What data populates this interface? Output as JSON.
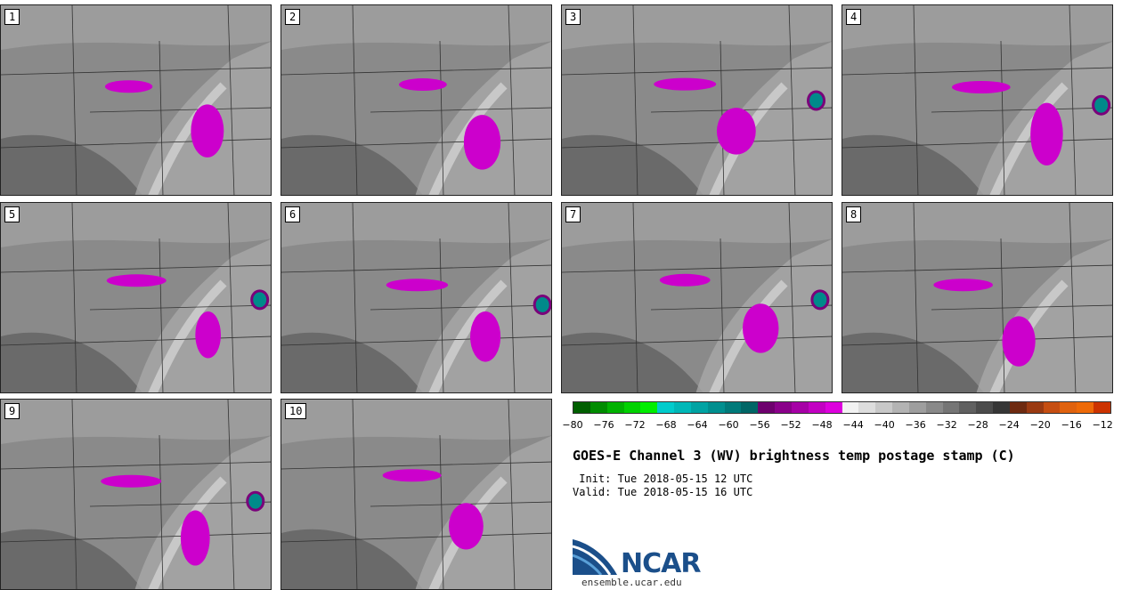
{
  "panels": [
    {
      "label": "1"
    },
    {
      "label": "2"
    },
    {
      "label": "3"
    },
    {
      "label": "4"
    },
    {
      "label": "5"
    },
    {
      "label": "6"
    },
    {
      "label": "7"
    },
    {
      "label": "8"
    },
    {
      "label": "9"
    },
    {
      "label": "10"
    }
  ],
  "colorbar": {
    "colors": [
      "#005f00",
      "#008c00",
      "#00b200",
      "#00d200",
      "#00ee00",
      "#00cccc",
      "#00b8b8",
      "#00a3a3",
      "#008f8f",
      "#007a7a",
      "#006666",
      "#6e006e",
      "#8a008a",
      "#a600a6",
      "#c200c2",
      "#dd00dd",
      "#f2f2f2",
      "#dddddd",
      "#c8c8c8",
      "#b3b3b3",
      "#9e9e9e",
      "#898989",
      "#757575",
      "#606060",
      "#4b4b4b",
      "#363636",
      "#6e2a10",
      "#9a3a12",
      "#c64e12",
      "#e0620e",
      "#ee6a08",
      "#cc3300"
    ],
    "ticks": [
      "−80",
      "−76",
      "−72",
      "−68",
      "−64",
      "−60",
      "−56",
      "−52",
      "−48",
      "−44",
      "−40",
      "−36",
      "−32",
      "−28",
      "−24",
      "−20",
      "−16",
      "−12"
    ]
  },
  "title": "GOES-E Channel 3 (WV) brightness temp postage stamp (C)",
  "init": " Init: Tue 2018-05-15 12 UTC",
  "valid": "Valid: Tue 2018-05-15 16 UTC",
  "logo_text": "NCAR",
  "site": "ensemble.ucar.edu"
}
